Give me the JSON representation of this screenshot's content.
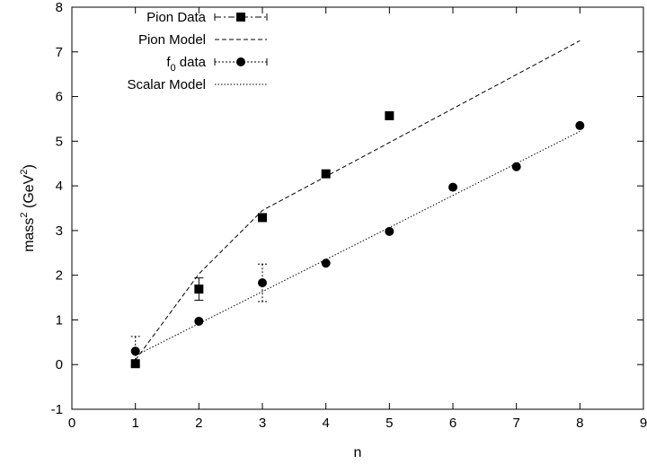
{
  "chart_data": {
    "type": "scatter",
    "title": "",
    "xlabel": "n",
    "ylabel": {
      "prefix": "mass",
      "sup1": "2",
      "mid": " (GeV",
      "sup2": "2",
      "suffix": ")"
    },
    "xlim": [
      0,
      9
    ],
    "ylim": [
      -1,
      8
    ],
    "xticks": [
      0,
      1,
      2,
      3,
      4,
      5,
      6,
      7,
      8,
      9
    ],
    "yticks": [
      -1,
      0,
      1,
      2,
      3,
      4,
      5,
      6,
      7,
      8
    ],
    "grid": false,
    "legend_position": "top-left",
    "series": [
      {
        "name": "Pion Data",
        "kind": "points",
        "marker": "square",
        "points": [
          {
            "x": 1,
            "y": 0.02,
            "err": 0.0
          },
          {
            "x": 2,
            "y": 1.69,
            "err": 0.25
          },
          {
            "x": 3,
            "y": 3.29,
            "err": 0.0
          },
          {
            "x": 4,
            "y": 4.27,
            "err": 0.0
          },
          {
            "x": 5,
            "y": 5.57,
            "err": 0.0
          }
        ]
      },
      {
        "name": "Pion Model",
        "kind": "line",
        "dash": "dashed",
        "points": [
          {
            "x": 1,
            "y": 0.1
          },
          {
            "x": 2,
            "y": 2.03
          },
          {
            "x": 3,
            "y": 3.45
          },
          {
            "x": 8,
            "y": 7.25
          }
        ]
      },
      {
        "name": "f",
        "name_sub": "0",
        "name_suffix": " data",
        "kind": "points",
        "marker": "circle",
        "points": [
          {
            "x": 1,
            "y": 0.3,
            "err": 0.33
          },
          {
            "x": 2,
            "y": 0.97,
            "err": 0.0
          },
          {
            "x": 3,
            "y": 1.83,
            "err": 0.42
          },
          {
            "x": 4,
            "y": 2.27,
            "err": 0.0
          },
          {
            "x": 5,
            "y": 2.98,
            "err": 0.0
          },
          {
            "x": 6,
            "y": 3.97,
            "err": 0.0
          },
          {
            "x": 7,
            "y": 4.43,
            "err": 0.0
          },
          {
            "x": 8,
            "y": 5.35,
            "err": 0.0
          }
        ]
      },
      {
        "name": "Scalar Model",
        "kind": "line",
        "dash": "dotted",
        "points": [
          {
            "x": 1,
            "y": 0.2
          },
          {
            "x": 8,
            "y": 5.22
          }
        ]
      }
    ]
  }
}
